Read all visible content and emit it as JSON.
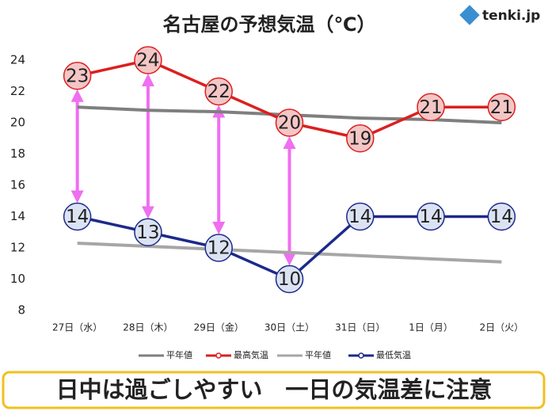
{
  "chart_data": {
    "type": "line",
    "title": "名古屋の予想気温（℃）",
    "source": "tenki.jp",
    "annotation": "日中は過ごしやすい　一日の気温差に注意",
    "categories": [
      "27日（水）",
      "28日（木）",
      "29日（金）",
      "30日（土）",
      "31日（日）",
      "1日（月）",
      "2日（火）"
    ],
    "series": [
      {
        "name": "平年値",
        "color": "#7f7f7f",
        "values": [
          21.0,
          20.8,
          20.7,
          20.5,
          20.3,
          20.2,
          20.0
        ]
      },
      {
        "name": "最高気温",
        "color": "#dc1f1f",
        "values": [
          23,
          24,
          22,
          20,
          19,
          21,
          21
        ],
        "marker_fill": "#f4c6c6"
      },
      {
        "name": "平年値",
        "color": "#a6a6a6",
        "values": [
          12.3,
          12.1,
          11.9,
          11.7,
          11.5,
          11.3,
          11.1
        ]
      },
      {
        "name": "最低気温",
        "color": "#1c2a8a",
        "values": [
          14,
          13,
          12,
          10,
          14,
          14,
          14
        ],
        "marker_fill": "#dbe3f3"
      }
    ],
    "ylim": [
      8,
      24
    ],
    "yticks": [
      8,
      10,
      12,
      14,
      16,
      18,
      20,
      22,
      24
    ],
    "grid": false,
    "arrow_color": "#f06ef0"
  }
}
